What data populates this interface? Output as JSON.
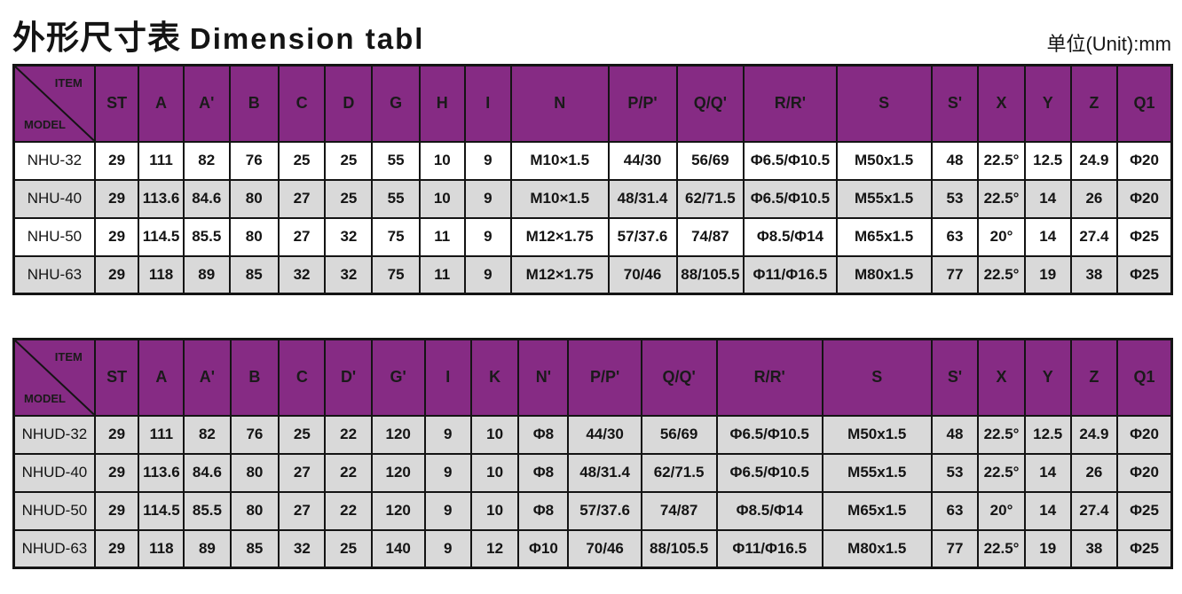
{
  "page": {
    "title_cn": "外形尺寸表",
    "title_en": "Dimension tabl",
    "unit_label": "单位(Unit):mm"
  },
  "colors": {
    "header_bg": "#862B84",
    "shade_row_bg": "#D9D9D9",
    "plain_row_bg": "#FFFFFF",
    "border": "#141414",
    "header_text": "#1A1A1A"
  },
  "tables": [
    {
      "id": "t1",
      "corner": {
        "item": "ITEM",
        "model": "MODEL"
      },
      "columns": [
        "ST",
        "A",
        "A'",
        "B",
        "C",
        "D",
        "G",
        "H",
        "I",
        "N",
        "P/P'",
        "Q/Q'",
        "R/R'",
        "S",
        "S'",
        "X",
        "Y",
        "Z",
        "Q1"
      ],
      "rows": [
        {
          "model": "NHU-32",
          "shade": false,
          "values": [
            "29",
            "111",
            "82",
            "76",
            "25",
            "25",
            "55",
            "10",
            "9",
            "M10×1.5",
            "44/30",
            "56/69",
            "Φ6.5/Φ10.5",
            "M50x1.5",
            "48",
            "22.5°",
            "12.5",
            "24.9",
            "Φ20"
          ]
        },
        {
          "model": "NHU-40",
          "shade": true,
          "values": [
            "29",
            "113.6",
            "84.6",
            "80",
            "27",
            "25",
            "55",
            "10",
            "9",
            "M10×1.5",
            "48/31.4",
            "62/71.5",
            "Φ6.5/Φ10.5",
            "M55x1.5",
            "53",
            "22.5°",
            "14",
            "26",
            "Φ20"
          ]
        },
        {
          "model": "NHU-50",
          "shade": false,
          "values": [
            "29",
            "114.5",
            "85.5",
            "80",
            "27",
            "32",
            "75",
            "11",
            "9",
            "M12×1.75",
            "57/37.6",
            "74/87",
            "Φ8.5/Φ14",
            "M65x1.5",
            "63",
            "20°",
            "14",
            "27.4",
            "Φ25"
          ]
        },
        {
          "model": "NHU-63",
          "shade": true,
          "values": [
            "29",
            "118",
            "89",
            "85",
            "32",
            "32",
            "75",
            "11",
            "9",
            "M12×1.75",
            "70/46",
            "88/105.5",
            "Φ11/Φ16.5",
            "M80x1.5",
            "77",
            "22.5°",
            "19",
            "38",
            "Φ25"
          ]
        }
      ]
    },
    {
      "id": "t2",
      "corner": {
        "item": "ITEM",
        "model": "MODEL"
      },
      "columns": [
        "ST",
        "A",
        "A'",
        "B",
        "C",
        "D'",
        "G'",
        "I",
        "K",
        "N'",
        "P/P'",
        "Q/Q'",
        "R/R'",
        "S",
        "S'",
        "X",
        "Y",
        "Z",
        "Q1"
      ],
      "rows": [
        {
          "model": "NHUD-32",
          "shade": true,
          "values": [
            "29",
            "111",
            "82",
            "76",
            "25",
            "22",
            "120",
            "9",
            "10",
            "Φ8",
            "44/30",
            "56/69",
            "Φ6.5/Φ10.5",
            "M50x1.5",
            "48",
            "22.5°",
            "12.5",
            "24.9",
            "Φ20"
          ]
        },
        {
          "model": "NHUD-40",
          "shade": true,
          "values": [
            "29",
            "113.6",
            "84.6",
            "80",
            "27",
            "22",
            "120",
            "9",
            "10",
            "Φ8",
            "48/31.4",
            "62/71.5",
            "Φ6.5/Φ10.5",
            "M55x1.5",
            "53",
            "22.5°",
            "14",
            "26",
            "Φ20"
          ]
        },
        {
          "model": "NHUD-50",
          "shade": true,
          "values": [
            "29",
            "114.5",
            "85.5",
            "80",
            "27",
            "22",
            "120",
            "9",
            "10",
            "Φ8",
            "57/37.6",
            "74/87",
            "Φ8.5/Φ14",
            "M65x1.5",
            "63",
            "20°",
            "14",
            "27.4",
            "Φ25"
          ]
        },
        {
          "model": "NHUD-63",
          "shade": true,
          "values": [
            "29",
            "118",
            "89",
            "85",
            "32",
            "25",
            "140",
            "9",
            "12",
            "Φ10",
            "70/46",
            "88/105.5",
            "Φ11/Φ16.5",
            "M80x1.5",
            "77",
            "22.5°",
            "19",
            "38",
            "Φ25"
          ]
        }
      ]
    }
  ]
}
